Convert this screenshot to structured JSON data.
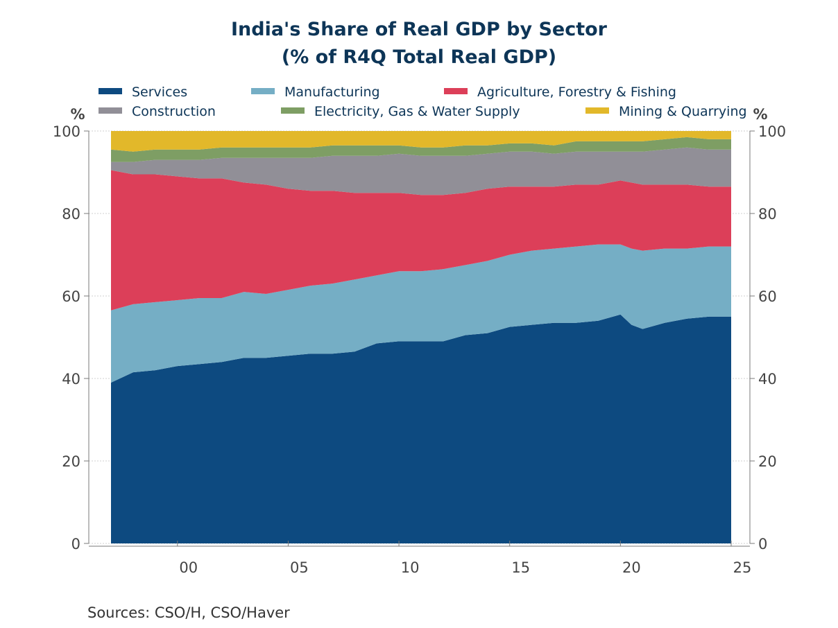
{
  "chart_data": {
    "type": "area",
    "stacked": true,
    "title": "India's Share of Real GDP by Sector",
    "subtitle": "(% of R4Q Total Real GDP)",
    "ylabel_left": "%",
    "ylabel_right": "%",
    "ylim": [
      0,
      100
    ],
    "yticks": [
      "0",
      "20",
      "40",
      "60",
      "80",
      "100"
    ],
    "xticks": [
      {
        "label": "00",
        "year": 2000
      },
      {
        "label": "05",
        "year": 2005
      },
      {
        "label": "10",
        "year": 2010
      },
      {
        "label": "15",
        "year": 2015
      },
      {
        "label": "20",
        "year": 2020
      },
      {
        "label": "25",
        "year": 2025
      }
    ],
    "x_start": 1997,
    "x_end": 2025,
    "grid": true,
    "legend_position": "top",
    "x": [
      1997.0,
      1998.0,
      1999.0,
      2000.0,
      2001.0,
      2002.0,
      2003.0,
      2004.0,
      2005.0,
      2006.0,
      2007.0,
      2008.0,
      2009.0,
      2010.0,
      2011.0,
      2012.0,
      2013.0,
      2014.0,
      2015.0,
      2016.0,
      2017.0,
      2018.0,
      2019.0,
      2020.0,
      2020.5,
      2021.0,
      2022.0,
      2023.0,
      2024.0,
      2025.0
    ],
    "series": [
      {
        "name": "Services",
        "color": "#0d4a80",
        "values": [
          39.0,
          41.5,
          42.0,
          43.0,
          43.5,
          44.0,
          45.0,
          45.0,
          45.5,
          46.0,
          46.0,
          46.5,
          48.5,
          49.0,
          49.0,
          49.0,
          50.5,
          51.0,
          52.5,
          53.0,
          53.5,
          53.5,
          54.0,
          55.5,
          53.0,
          52.0,
          53.5,
          54.5,
          55.0,
          55.0
        ]
      },
      {
        "name": "Manufacturing",
        "color": "#75aec5",
        "values": [
          17.5,
          16.5,
          16.5,
          16.0,
          16.0,
          15.5,
          16.0,
          15.5,
          16.0,
          16.5,
          17.0,
          17.5,
          16.5,
          17.0,
          17.0,
          17.5,
          17.0,
          17.5,
          17.5,
          18.0,
          18.0,
          18.5,
          18.5,
          17.0,
          18.5,
          19.0,
          18.0,
          17.0,
          17.0,
          17.0
        ]
      },
      {
        "name": "Agriculture, Forestry & Fishing",
        "color": "#dc3f59",
        "values": [
          34.0,
          31.5,
          31.0,
          30.0,
          29.0,
          29.0,
          26.5,
          26.5,
          24.5,
          23.0,
          22.5,
          21.0,
          20.0,
          19.0,
          18.5,
          18.0,
          17.5,
          17.5,
          16.5,
          15.5,
          15.0,
          15.0,
          14.5,
          15.5,
          16.0,
          16.0,
          15.5,
          15.5,
          14.5,
          14.5
        ]
      },
      {
        "name": "Construction",
        "color": "#918f97",
        "values": [
          2.0,
          3.0,
          3.5,
          4.0,
          4.5,
          5.0,
          6.0,
          6.5,
          7.5,
          8.0,
          8.5,
          9.0,
          9.0,
          9.5,
          9.5,
          9.5,
          9.0,
          8.5,
          8.5,
          8.5,
          8.0,
          8.0,
          8.0,
          7.0,
          7.5,
          8.0,
          8.5,
          9.0,
          9.0,
          9.0
        ]
      },
      {
        "name": "Electricity, Gas & Water Supply",
        "color": "#7e9e64",
        "values": [
          3.0,
          2.5,
          2.5,
          2.5,
          2.5,
          2.5,
          2.5,
          2.5,
          2.5,
          2.5,
          2.5,
          2.5,
          2.5,
          2.0,
          2.0,
          2.0,
          2.5,
          2.0,
          2.0,
          2.0,
          2.0,
          2.5,
          2.5,
          2.5,
          2.5,
          2.5,
          2.5,
          2.5,
          2.5,
          2.5
        ]
      },
      {
        "name": "Mining & Quarrying",
        "color": "#e2b82a",
        "values": [
          4.5,
          5.0,
          4.5,
          4.5,
          4.5,
          4.0,
          4.0,
          4.0,
          4.0,
          4.0,
          3.5,
          3.5,
          3.5,
          3.5,
          4.0,
          4.0,
          3.5,
          3.5,
          3.0,
          3.0,
          3.5,
          2.5,
          2.5,
          2.5,
          2.5,
          2.5,
          2.0,
          1.5,
          2.0,
          2.0
        ]
      }
    ],
    "source": "Sources:  CSO/H, CSO/Haver"
  }
}
